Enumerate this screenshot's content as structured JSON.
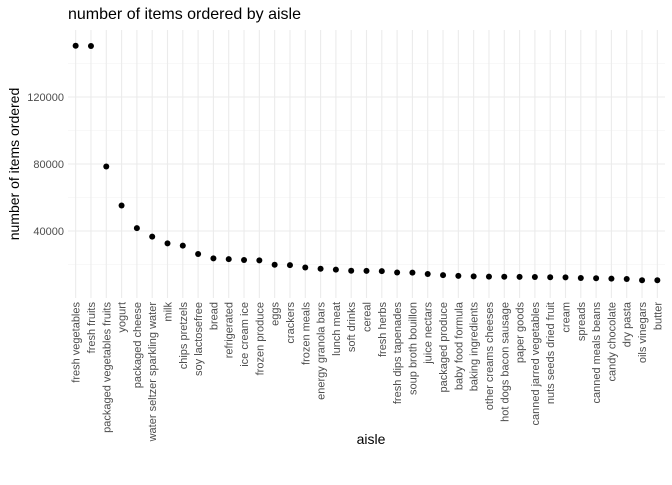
{
  "chart_data": {
    "type": "scatter",
    "title": "number of items ordered by aisle",
    "xlabel": "aisle",
    "ylabel": "number of items ordered",
    "ylim": [
      0,
      160000
    ],
    "yticks": [
      40000,
      80000,
      120000
    ],
    "ytick_labels": [
      "40000",
      "80000",
      "120000"
    ],
    "grid": true,
    "point_color": "#000000",
    "categories": [
      "fresh vegetables",
      "fresh fruits",
      "packaged vegetables fruits",
      "yogurt",
      "packaged cheese",
      "water seltzer sparkling water",
      "milk",
      "chips pretzels",
      "soy lactosefree",
      "bread",
      "refrigerated",
      "ice cream ice",
      "frozen produce",
      "eggs",
      "crackers",
      "frozen meals",
      "energy granola bars",
      "lunch meat",
      "soft drinks",
      "cereal",
      "fresh herbs",
      "fresh dips tapenades",
      "soup broth bouillon",
      "juice nectars",
      "packaged produce",
      "baby food formula",
      "baking ingredients",
      "other creams cheeses",
      "hot dogs bacon sausage",
      "paper goods",
      "canned jarred vegetables",
      "nuts seeds dried fruit",
      "cream",
      "spreads",
      "canned meals beans",
      "candy chocolate",
      "dry pasta",
      "oils vinegars",
      "butter"
    ],
    "values": [
      150609,
      150473,
      78493,
      55240,
      41699,
      36617,
      32644,
      31269,
      26240,
      23635,
      23228,
      22676,
      22453,
      19875,
      19592,
      18221,
      17449,
      16957,
      16279,
      16201,
      16052,
      15255,
      15144,
      14336,
      13633,
      13198,
      12907,
      12770,
      12720,
      12614,
      12520,
      12383,
      12296,
      11939,
      11774,
      11541,
      11374,
      10632,
      10575
    ]
  }
}
